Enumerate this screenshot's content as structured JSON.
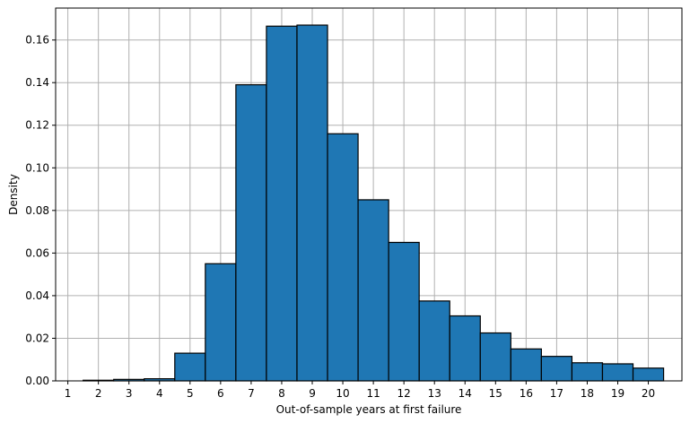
{
  "chart_data": {
    "type": "bar",
    "title": "",
    "xlabel": "Out-of-sample years at first failure",
    "ylabel": "Density",
    "categories": [
      "1",
      "2",
      "3",
      "4",
      "5",
      "6",
      "7",
      "8",
      "9",
      "10",
      "11",
      "12",
      "13",
      "14",
      "15",
      "16",
      "17",
      "18",
      "19",
      "20"
    ],
    "values": [
      0.0,
      0.0003,
      0.0007,
      0.001,
      0.013,
      0.055,
      0.139,
      0.1665,
      0.167,
      0.116,
      0.085,
      0.065,
      0.0375,
      0.0305,
      0.0225,
      0.015,
      0.0115,
      0.0085,
      0.008,
      0.006
    ],
    "xlim": [
      0.6,
      21.1
    ],
    "ylim": [
      0,
      0.175
    ],
    "xticks": [
      1,
      2,
      3,
      4,
      5,
      6,
      7,
      8,
      9,
      10,
      11,
      12,
      13,
      14,
      15,
      16,
      17,
      18,
      19,
      20
    ],
    "yticks": [
      "0.00",
      "0.02",
      "0.04",
      "0.06",
      "0.08",
      "0.10",
      "0.12",
      "0.14",
      "0.16"
    ],
    "grid": true,
    "bar_color": "#1f77b4",
    "edge_color": "#000000"
  }
}
